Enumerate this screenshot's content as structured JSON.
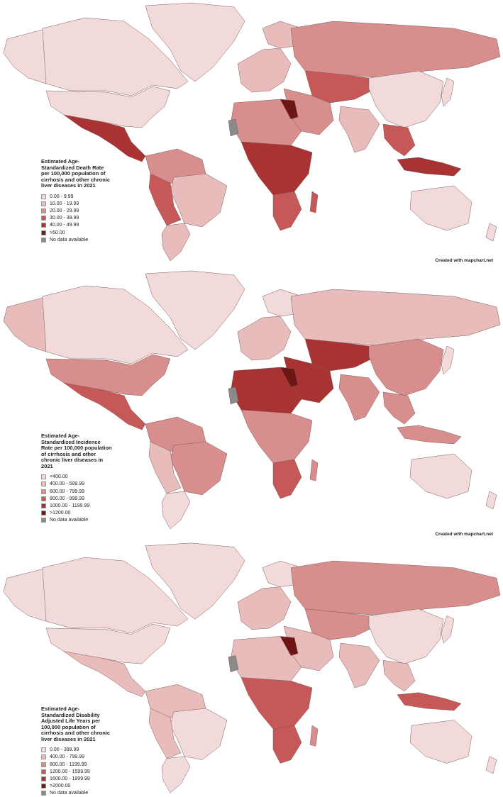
{
  "maps": [
    {
      "legend_title": "Estimated Age-Standardized Death Rate per 100,000 population of cirrhosis and other chronic liver diseases in 2021",
      "legend": [
        {
          "label": "0.00 - 9.99",
          "color": "#f3dada"
        },
        {
          "label": "10.00 - 19.99",
          "color": "#e9bcbc"
        },
        {
          "label": "20.00 - 29.99",
          "color": "#d98e8e"
        },
        {
          "label": "30.00 - 39.99",
          "color": "#c75858"
        },
        {
          "label": "40.00 - 49.99",
          "color": "#a93232"
        },
        {
          "label": ">50.00",
          "color": "#6e1616"
        },
        {
          "label": "No data available",
          "color": "#8a8a8a"
        }
      ],
      "credit": "Created with mapchart.net"
    },
    {
      "legend_title": "Estimated Age-Standardized Incidence Rate per 100,000 population of cirrhosis and other chronic liver diseases in 2021",
      "legend": [
        {
          "label": "<400.00",
          "color": "#f3dada"
        },
        {
          "label": "400.00 - 599.99",
          "color": "#e9bcbc"
        },
        {
          "label": "600.00 - 799.99",
          "color": "#d98e8e"
        },
        {
          "label": "800.00 - 999.99",
          "color": "#c75858"
        },
        {
          "label": "1000.00 - 1199.99",
          "color": "#a93232"
        },
        {
          "label": ">1200.00",
          "color": "#6e1616"
        },
        {
          "label": "No data available",
          "color": "#8a8a8a"
        }
      ],
      "credit": "Created with mapchart.net"
    },
    {
      "legend_title": "Estimated Age-Standardized Disability Adjusted Life Years per 100,000 population of cirrhosis and other chronic liver diseases in 2021",
      "legend": [
        {
          "label": "0.00 - 399.99",
          "color": "#f3dada"
        },
        {
          "label": "400.00 - 799.99",
          "color": "#e9bcbc"
        },
        {
          "label": "800.00 - 1199.99",
          "color": "#d98e8e"
        },
        {
          "label": "1200.00 - 1599.99",
          "color": "#c75858"
        },
        {
          "label": "1600.00 - 1999.99",
          "color": "#a93232"
        },
        {
          "label": ">2000.00",
          "color": "#6e1616"
        },
        {
          "label": "No data available",
          "color": "#8a8a8a"
        }
      ],
      "credit": ""
    }
  ]
}
